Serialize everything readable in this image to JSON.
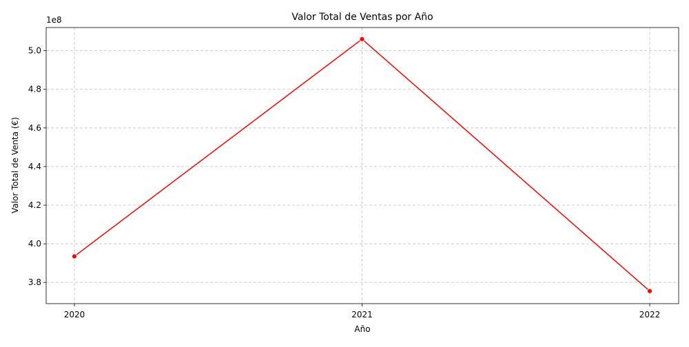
{
  "chart_data": {
    "type": "line",
    "title": "Valor Total de Ventas por Año",
    "xlabel": "Año",
    "ylabel": "Valor Total de Venta (€)",
    "offset_label": "1e8",
    "x": [
      "2020",
      "2021",
      "2022"
    ],
    "series": [
      {
        "values": [
          393500000,
          506000000,
          375500000
        ],
        "color": "#ff0000",
        "marker": "circle"
      }
    ],
    "ylim": [
      369000000,
      512000000
    ],
    "yticks": [
      380000000,
      400000000,
      420000000,
      440000000,
      460000000,
      480000000,
      500000000
    ],
    "ytick_labels": [
      "3.8",
      "4.0",
      "4.2",
      "4.4",
      "4.6",
      "4.8",
      "5.0"
    ],
    "grid": true
  }
}
